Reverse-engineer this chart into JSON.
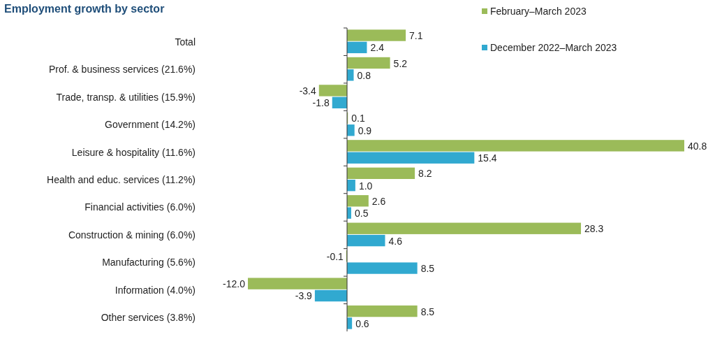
{
  "chart_data": {
    "type": "bar",
    "orientation": "horizontal",
    "title": "Employment growth by sector",
    "categories": [
      "Total",
      "Prof. & business services (21.6%)",
      "Trade, transp. & utilities (15.9%)",
      "Government (14.2%)",
      "Leisure & hospitality (11.6%)",
      "Health and educ. services (11.2%)",
      "Financial activities (6.0%)",
      "Construction & mining (6.0%)",
      "Manufacturing (5.6%)",
      "Information (4.0%)",
      "Other services (3.8%)"
    ],
    "series": [
      {
        "name": "February–March  2023",
        "color": "#9bbb59",
        "values": [
          7.1,
          5.2,
          -3.4,
          0.1,
          40.8,
          8.2,
          2.6,
          28.3,
          -0.1,
          -12,
          8.5
        ],
        "value_labels": [
          "7.1",
          "5.2",
          "-3.4",
          "0.1",
          "40.8",
          "8.2",
          "2.6",
          "28.3",
          "-0.1",
          "-12.0",
          "8.5"
        ]
      },
      {
        "name": "December 2022–March 2023",
        "color": "#31a9d0",
        "values": [
          2.4,
          0.8,
          -1.8,
          0.9,
          15.4,
          1,
          0.5,
          4.6,
          8.5,
          -3.9,
          0.6
        ],
        "value_labels": [
          "2.4",
          "0.8",
          "-1.8",
          "0.9",
          "15.4",
          "1.0",
          "0.5",
          "4.6",
          "8.5",
          "-3.9",
          "0.6"
        ]
      }
    ],
    "legend": "top right"
  }
}
